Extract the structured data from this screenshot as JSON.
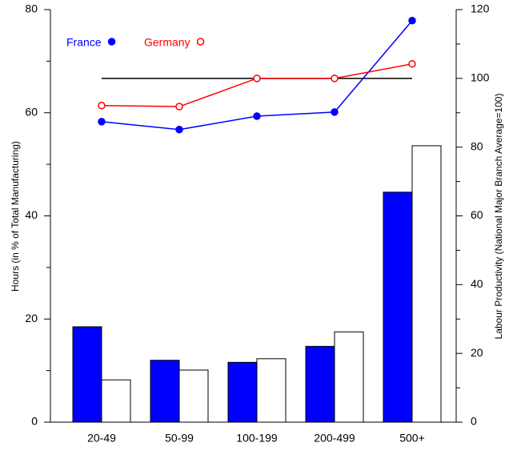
{
  "chart_data": {
    "type": "bar",
    "categories": [
      "20-49",
      "50-99",
      "100-199",
      "200-499",
      "500+"
    ],
    "ylabel": "Hours (in % of Total Manufacturing)",
    "y2label": "Labour Productivity (National Major Branch Average=100)",
    "ylim": [
      0,
      80
    ],
    "yticks": [
      0,
      20,
      40,
      60,
      80
    ],
    "yminorticks": [
      10,
      30,
      50,
      70
    ],
    "y2lim": [
      0,
      120
    ],
    "y2ticks": [
      0,
      20,
      40,
      60,
      80,
      100,
      120
    ],
    "y2minorticks": [
      10,
      30,
      50,
      70,
      90,
      110
    ],
    "reference_line": {
      "value": 100,
      "axis": "y2",
      "color": "#000000"
    },
    "series": [
      {
        "name": "France",
        "color": "#0000ff",
        "bar_color": "#0000ff",
        "marker": "filled",
        "values": [
          18.5,
          12,
          11.6,
          14.7,
          44.6
        ],
        "y2_values": [
          87.4,
          85.1,
          89,
          90.2,
          116.8
        ]
      },
      {
        "name": "Germany",
        "color": "#ff0000",
        "bar_color": "#ffffff",
        "marker": "open",
        "values": [
          8.2,
          10.1,
          12.3,
          17.5,
          53.6
        ],
        "y2_values": [
          92.1,
          91.8,
          100,
          100,
          104.2
        ]
      }
    ]
  }
}
